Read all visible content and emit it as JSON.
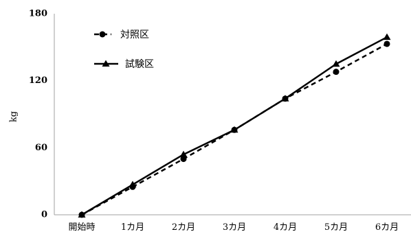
{
  "chart_data": {
    "type": "line",
    "categories": [
      "開始時",
      "1カ月",
      "2カ月",
      "3カ月",
      "4カ月",
      "5カ月",
      "6カ月"
    ],
    "ylabel": "kg",
    "ylim": [
      0,
      180
    ],
    "yticks": [
      0,
      60,
      120,
      180
    ],
    "grid": false,
    "legend_position": "top-left",
    "series": [
      {
        "name": "対照区",
        "marker": "circle",
        "line": "dashed",
        "values": [
          0,
          25,
          50,
          76,
          104,
          128,
          153
        ]
      },
      {
        "name": "試験区",
        "marker": "triangle",
        "line": "solid",
        "values": [
          0,
          27,
          54,
          76,
          104,
          135,
          159
        ]
      }
    ]
  }
}
